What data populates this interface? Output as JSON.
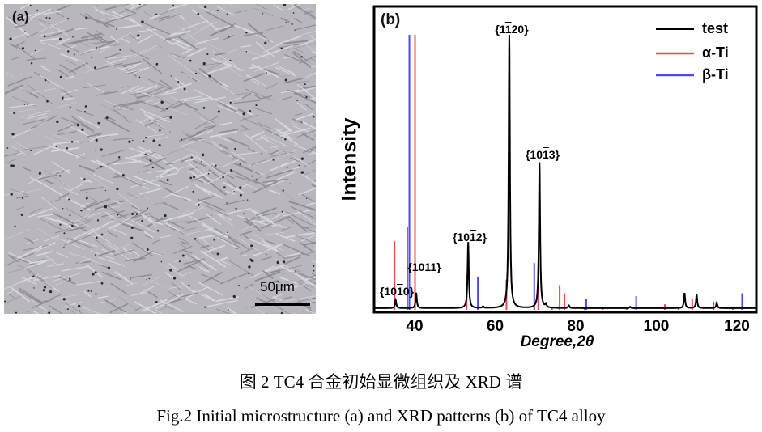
{
  "panel_a": {
    "label": "(a)",
    "scale_bar": "50μm"
  },
  "chart_data": {
    "type": "line",
    "panel_label": "(b)",
    "xlabel": "Degree,2θ",
    "ylabel": "Intensity",
    "xlim": [
      30,
      125
    ],
    "ylim": [
      0,
      100
    ],
    "xticks": [
      40,
      60,
      80,
      100,
      120
    ],
    "grid": false,
    "legend_placement": "top-right",
    "series": [
      {
        "name": "test",
        "color": "#000000",
        "style": "line",
        "peaks": [
          [
            35.3,
            3
          ],
          [
            40.4,
            5.6
          ],
          [
            53.3,
            24
          ],
          [
            57.0,
            0.6
          ],
          [
            63.5,
            100
          ],
          [
            71.0,
            53
          ],
          [
            72.6,
            1.2
          ],
          [
            78.3,
            1
          ],
          [
            93.5,
            0.5
          ],
          [
            107.0,
            5.5
          ],
          [
            110.0,
            5
          ],
          [
            115.0,
            2
          ]
        ]
      },
      {
        "name": "α-Ti",
        "color": "#f0474a",
        "style": "sticks",
        "x": [
          35.0,
          38.2,
          40.1,
          52.9,
          62.8,
          70.7,
          74.1,
          76.0,
          77.2,
          82.2,
          86.7,
          92.6,
          102.1,
          105.5,
          108.9,
          114.2,
          119.0
        ],
        "y": [
          25,
          30,
          100,
          13,
          11,
          11,
          1,
          9,
          6,
          1,
          1,
          1,
          2,
          1,
          4,
          3,
          1
        ]
      },
      {
        "name": "β-Ti",
        "color": "#4a4af5",
        "style": "sticks",
        "x": [
          38.7,
          55.7,
          69.7,
          82.6,
          95.0,
          121.3
        ],
        "y": [
          100,
          12,
          17,
          4,
          5,
          6
        ]
      }
    ],
    "annotations": [
      {
        "pre": "{10",
        "bar": "1",
        "post": "0}",
        "x": 35.3
      },
      {
        "pre": "{10",
        "bar": "1",
        "post": "1}",
        "x": 40.4
      },
      {
        "pre": "{10",
        "bar": "1",
        "post": "2}",
        "x": 53.3
      },
      {
        "pre": "{1",
        "bar": "1",
        "post": "20}",
        "x": 63.5
      },
      {
        "pre": "{10",
        "bar": "1",
        "post": "3}",
        "x": 71.0
      }
    ]
  },
  "caption": {
    "zh": "图 2 TC4 合金初始显微组织及 XRD 谱",
    "en": "Fig.2 Initial microstructure (a) and XRD patterns (b) of TC4 alloy"
  }
}
